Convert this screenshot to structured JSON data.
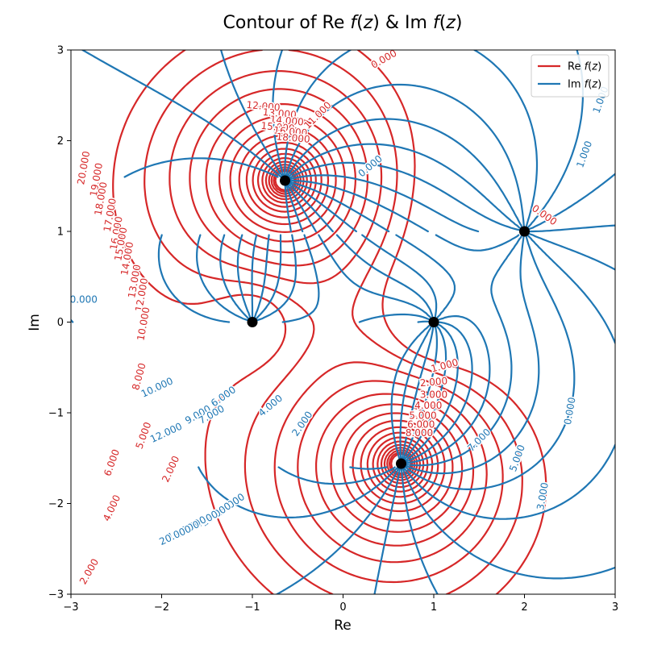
{
  "chart_data": {
    "type": "contour",
    "title": "Contour of Re f(z) & Im f(z)",
    "xlabel": "Re",
    "ylabel": "Im",
    "xlim": [
      -3,
      3
    ],
    "ylim": [
      -3,
      3
    ],
    "xticks": [
      -3,
      -2,
      -1,
      0,
      1,
      2,
      3
    ],
    "yticks": [
      -3,
      -2,
      -1,
      0,
      1,
      2,
      3
    ],
    "grid": false,
    "legend": {
      "position": "upper right",
      "entries": [
        {
          "label": "Re f(z)",
          "color": "#d62728"
        },
        {
          "label": "Im f(z)",
          "color": "#1f77b4"
        }
      ]
    },
    "colors": {
      "re": "#d62728",
      "im": "#1f77b4",
      "marker": "#000000"
    },
    "marked_points": [
      {
        "x": -1,
        "y": 0
      },
      {
        "x": 1,
        "y": 0
      },
      {
        "x": 2,
        "y": 1
      },
      {
        "x": -0.64,
        "y": 1.56
      },
      {
        "x": 0.64,
        "y": -1.56
      }
    ],
    "re_contour_labels": [
      {
        "text": "20.000",
        "x": -2.86,
        "y": 1.7,
        "angle": -80
      },
      {
        "text": "19.000",
        "x": -2.72,
        "y": 1.57,
        "angle": -80
      },
      {
        "text": "18.000",
        "x": -2.67,
        "y": 1.36,
        "angle": -80
      },
      {
        "text": "17.000",
        "x": -2.57,
        "y": 1.18,
        "angle": -80
      },
      {
        "text": "16.000",
        "x": -2.5,
        "y": 0.98,
        "angle": -80
      },
      {
        "text": "15.000",
        "x": -2.45,
        "y": 0.86,
        "angle": -80
      },
      {
        "text": "14.000",
        "x": -2.38,
        "y": 0.7,
        "angle": -80
      },
      {
        "text": "13.000",
        "x": -2.3,
        "y": 0.45,
        "angle": -80
      },
      {
        "text": "12.000",
        "x": -2.22,
        "y": 0.3,
        "angle": -80
      },
      {
        "text": "10.000",
        "x": -2.2,
        "y": -0.02,
        "angle": -80
      },
      {
        "text": "8.000",
        "x": -2.25,
        "y": -0.6,
        "angle": -75
      },
      {
        "text": "5.000",
        "x": -2.2,
        "y": -1.25,
        "angle": -70
      },
      {
        "text": "6.000",
        "x": -2.55,
        "y": -1.55,
        "angle": -70
      },
      {
        "text": "2.000",
        "x": -1.9,
        "y": -1.62,
        "angle": -65
      },
      {
        "text": "4.000",
        "x": -2.55,
        "y": -2.05,
        "angle": -65
      },
      {
        "text": "2.000",
        "x": -2.8,
        "y": -2.75,
        "angle": -60
      },
      {
        "text": "12.000",
        "x": -0.88,
        "y": 2.38,
        "angle": 5
      },
      {
        "text": "13.000",
        "x": -0.7,
        "y": 2.3,
        "angle": 5
      },
      {
        "text": "14.000",
        "x": -0.62,
        "y": 2.22,
        "angle": 5
      },
      {
        "text": "15.000",
        "x": -0.72,
        "y": 2.15,
        "angle": 5
      },
      {
        "text": "16.000",
        "x": -0.58,
        "y": 2.1,
        "angle": 5
      },
      {
        "text": "18.000",
        "x": -0.55,
        "y": 2.03,
        "angle": 5
      },
      {
        "text": "11.000",
        "x": -0.28,
        "y": 2.28,
        "angle": -45
      },
      {
        "text": "0.000",
        "x": 0.45,
        "y": 2.9,
        "angle": -30
      },
      {
        "text": "0.000",
        "x": 2.22,
        "y": 1.18,
        "angle": 35
      },
      {
        "text": "1.000",
        "x": 1.12,
        "y": -0.48,
        "angle": -15
      },
      {
        "text": "2.000",
        "x": 1.0,
        "y": -0.66,
        "angle": -5
      },
      {
        "text": "3.000",
        "x": 1.0,
        "y": -0.8,
        "angle": 0
      },
      {
        "text": "4.000",
        "x": 0.94,
        "y": -0.92,
        "angle": 0
      },
      {
        "text": "5.000",
        "x": 0.88,
        "y": -1.03,
        "angle": 0
      },
      {
        "text": "6.000",
        "x": 0.86,
        "y": -1.13,
        "angle": 0
      },
      {
        "text": "8.000",
        "x": 0.84,
        "y": -1.22,
        "angle": 0
      }
    ],
    "im_contour_labels": [
      {
        "text": "1.000",
        "x": 2.84,
        "y": 2.45,
        "angle": -70
      },
      {
        "text": "1.000",
        "x": 2.66,
        "y": 1.85,
        "angle": -70
      },
      {
        "text": "0.000",
        "x": 0.3,
        "y": 1.72,
        "angle": -40
      },
      {
        "text": "0.000",
        "x": -2.86,
        "y": 0.25,
        "angle": 0
      },
      {
        "text": "10.000",
        "x": -2.05,
        "y": -0.72,
        "angle": -25
      },
      {
        "text": "6.000",
        "x": -1.32,
        "y": -0.82,
        "angle": -35
      },
      {
        "text": "9.000",
        "x": -1.6,
        "y": -1.02,
        "angle": -30
      },
      {
        "text": "7.000",
        "x": -1.45,
        "y": -1.02,
        "angle": -30
      },
      {
        "text": "4.000",
        "x": -0.8,
        "y": -0.92,
        "angle": -40
      },
      {
        "text": "2.000",
        "x": -0.45,
        "y": -1.12,
        "angle": -55
      },
      {
        "text": "12.000",
        "x": -1.95,
        "y": -1.22,
        "angle": -25
      },
      {
        "text": "0.000",
        "x": 2.5,
        "y": -0.98,
        "angle": -80
      },
      {
        "text": "5.000",
        "x": 1.92,
        "y": -1.5,
        "angle": -70
      },
      {
        "text": "3.000",
        "x": 2.2,
        "y": -1.92,
        "angle": -80
      },
      {
        "text": "7.000",
        "x": 1.5,
        "y": -1.3,
        "angle": -45
      },
      {
        "text": "15.000",
        "x": -1.25,
        "y": -2.02,
        "angle": -35
      },
      {
        "text": "16.000",
        "x": -1.4,
        "y": -2.12,
        "angle": -35
      },
      {
        "text": "17.000",
        "x": -1.55,
        "y": -2.2,
        "angle": -30
      },
      {
        "text": "18.000",
        "x": -1.68,
        "y": -2.26,
        "angle": -30
      },
      {
        "text": "19.000",
        "x": -1.76,
        "y": -2.3,
        "angle": -25
      },
      {
        "text": "20.000",
        "x": -1.85,
        "y": -2.35,
        "angle": -25
      }
    ]
  }
}
